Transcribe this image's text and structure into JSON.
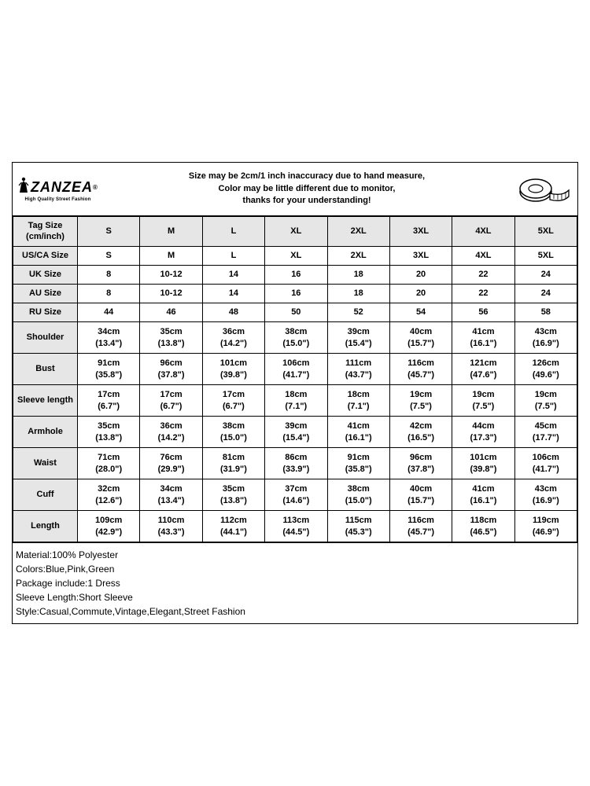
{
  "brand": {
    "name": "ZANZEA",
    "registered": "®",
    "tagline": "High Quality Street Fashion"
  },
  "note": {
    "line1": "Size may be 2cm/1 inch inaccuracy due to hand measure,",
    "line2": "Color may be little different due to monitor,",
    "line3": "thanks for your understanding!"
  },
  "tagHeader": {
    "l1": "Tag Size",
    "l2": "(cm/inch)"
  },
  "sizes": [
    "S",
    "M",
    "L",
    "XL",
    "2XL",
    "3XL",
    "4XL",
    "5XL"
  ],
  "sizeRows": [
    {
      "label": "US/CA Size",
      "vals": [
        "S",
        "M",
        "L",
        "XL",
        "2XL",
        "3XL",
        "4XL",
        "5XL"
      ]
    },
    {
      "label": "UK Size",
      "vals": [
        "8",
        "10-12",
        "14",
        "16",
        "18",
        "20",
        "22",
        "24"
      ]
    },
    {
      "label": "AU Size",
      "vals": [
        "8",
        "10-12",
        "14",
        "16",
        "18",
        "20",
        "22",
        "24"
      ]
    },
    {
      "label": "RU Size",
      "vals": [
        "44",
        "46",
        "48",
        "50",
        "52",
        "54",
        "56",
        "58"
      ]
    }
  ],
  "measureRows": [
    {
      "label": "Shoulder",
      "cm": [
        "34cm",
        "35cm",
        "36cm",
        "38cm",
        "39cm",
        "40cm",
        "41cm",
        "43cm"
      ],
      "in": [
        "(13.4\")",
        "(13.8\")",
        "(14.2\")",
        "(15.0\")",
        "(15.4\")",
        "(15.7\")",
        "(16.1\")",
        "(16.9\")"
      ]
    },
    {
      "label": "Bust",
      "cm": [
        "91cm",
        "96cm",
        "101cm",
        "106cm",
        "111cm",
        "116cm",
        "121cm",
        "126cm"
      ],
      "in": [
        "(35.8\")",
        "(37.8\")",
        "(39.8\")",
        "(41.7\")",
        "(43.7\")",
        "(45.7\")",
        "(47.6\")",
        "(49.6\")"
      ]
    },
    {
      "label": "Sleeve length",
      "cm": [
        "17cm",
        "17cm",
        "17cm",
        "18cm",
        "18cm",
        "19cm",
        "19cm",
        "19cm"
      ],
      "in": [
        "(6.7\")",
        "(6.7\")",
        "(6.7\")",
        "(7.1\")",
        "(7.1\")",
        "(7.5\")",
        "(7.5\")",
        "(7.5\")"
      ]
    },
    {
      "label": "Armhole",
      "cm": [
        "35cm",
        "36cm",
        "38cm",
        "39cm",
        "41cm",
        "42cm",
        "44cm",
        "45cm"
      ],
      "in": [
        "(13.8\")",
        "(14.2\")",
        "(15.0\")",
        "(15.4\")",
        "(16.1\")",
        "(16.5\")",
        "(17.3\")",
        "(17.7\")"
      ]
    },
    {
      "label": "Waist",
      "cm": [
        "71cm",
        "76cm",
        "81cm",
        "86cm",
        "91cm",
        "96cm",
        "101cm",
        "106cm"
      ],
      "in": [
        "(28.0\")",
        "(29.9\")",
        "(31.9\")",
        "(33.9\")",
        "(35.8\")",
        "(37.8\")",
        "(39.8\")",
        "(41.7\")"
      ]
    },
    {
      "label": "Cuff",
      "cm": [
        "32cm",
        "34cm",
        "35cm",
        "37cm",
        "38cm",
        "40cm",
        "41cm",
        "43cm"
      ],
      "in": [
        "(12.6\")",
        "(13.4\")",
        "(13.8\")",
        "(14.6\")",
        "(15.0\")",
        "(15.7\")",
        "(16.1\")",
        "(16.9\")"
      ]
    },
    {
      "label": "Length",
      "cm": [
        "109cm",
        "110cm",
        "112cm",
        "113cm",
        "115cm",
        "116cm",
        "118cm",
        "119cm"
      ],
      "in": [
        "(42.9\")",
        "(43.3\")",
        "(44.1\")",
        "(44.5\")",
        "(45.3\")",
        "(45.7\")",
        "(46.5\")",
        "(46.9\")"
      ]
    }
  ],
  "details": [
    "Material:100% Polyester",
    "Colors:Blue,Pink,Green",
    "Package include:1 Dress",
    "Sleeve Length:Short Sleeve",
    "Style:Casual,Commute,Vintage,Elegant,Street Fashion"
  ],
  "style": {
    "border_color": "#000000",
    "header_bg": "#e6e6e6",
    "page_bg": "#ffffff",
    "font_size_cell": 11,
    "font_size_note": 11,
    "font_size_details": 12
  }
}
